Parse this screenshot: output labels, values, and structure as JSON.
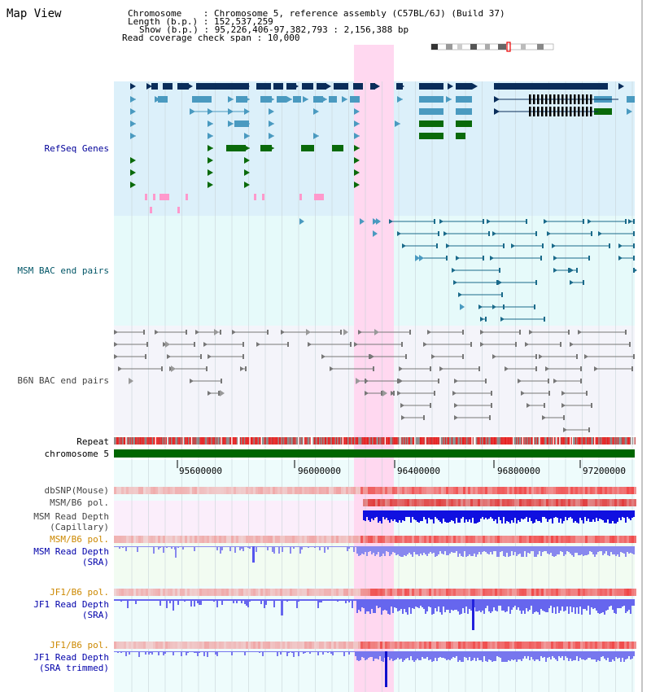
{
  "title": "Map View",
  "header": {
    "chrom_line": "Chromosome    : Chromosome 5, reference assembly (C57BL/6J) (Build 37)",
    "length_line": "Length (b.p.) : 152,537,259",
    "show_line": "Show (b.p.) : 95,226,406-97,382,793 : 2,156,388 bp",
    "span_line": "Read coverage check span : 10,000"
  },
  "tracks": {
    "refseq": "RefSeq Genes",
    "msm_bac": "MSM BAC end pairs",
    "b6n_bac": "B6N BAC end pairs",
    "repeat": "Repeat",
    "chromosome": "chromosome 5",
    "dbsnp": "dbSNP(Mouse)",
    "msm_b6_pol_1": "MSM/B6 pol.",
    "msm_depth_cap_1": "MSM Read Depth",
    "msm_depth_cap_2": "(Capillary)",
    "msm_b6_pol_2": "MSM/B6 pol.",
    "msm_depth_sra_1": "MSM Read Depth",
    "msm_depth_sra_2": "(SRA)",
    "jf1_b6_pol_1": "JF1/B6 pol.",
    "jf1_depth_sra_1": "JF1 Read Depth",
    "jf1_depth_sra_2": "(SRA)",
    "jf1_b6_pol_2": "JF1/B6 pol.",
    "jf1_depth_trim_1": "JF1 Read Depth",
    "jf1_depth_trim_2": "(SRA trimmed)"
  },
  "axis_ticks": [
    "95600000",
    "96000000",
    "96400000",
    "96800000",
    "97200000"
  ],
  "colors": {
    "refseq_bg": "#dcf0fa",
    "msm_bg": "#e6fafa",
    "b6n_bg": "#f4f4fa",
    "highlight": "#ffd8f0",
    "gene_dark": "#0a2d5a",
    "gene_mid": "#4a9ac0",
    "gene_green": "#0a6a0a",
    "chrom_green": "#006600",
    "depth_blue": "#4444ee"
  }
}
